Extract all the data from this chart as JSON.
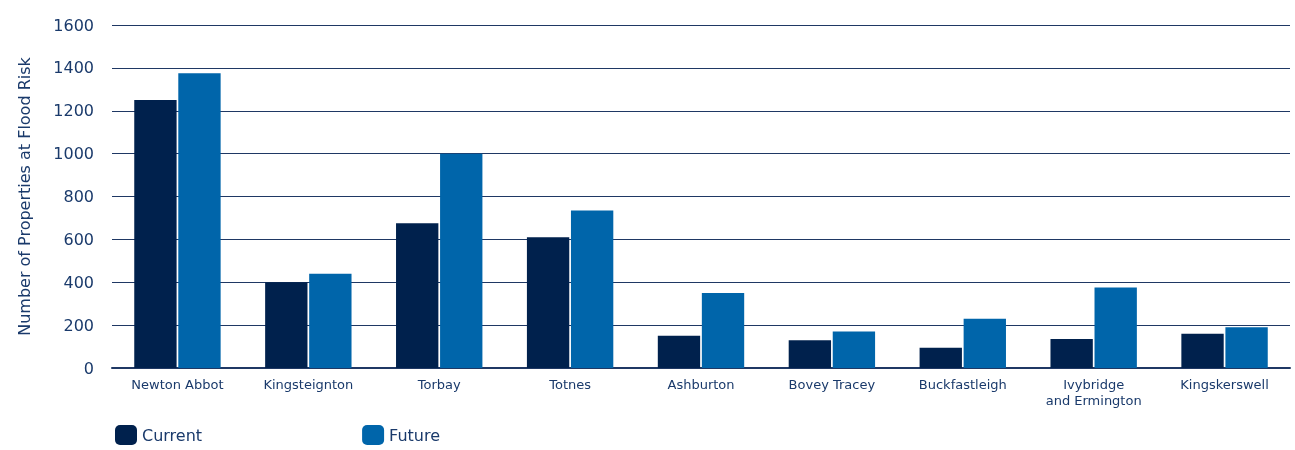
{
  "chart_data": {
    "type": "bar",
    "ylabel": "Number of Properties at Flood Risk",
    "categories": [
      "Newton Abbot",
      "Kingsteignton",
      "Torbay",
      "Totnes",
      "Ashburton",
      "Bovey Tracey",
      "Buckfastleigh",
      "Ivybridge\nand Ermington",
      "Kingskerswell"
    ],
    "series": [
      {
        "name": "Current",
        "color": "#00214d",
        "values": [
          1250,
          400,
          675,
          610,
          150,
          130,
          95,
          135,
          160
        ]
      },
      {
        "name": "Future",
        "color": "#0065aa",
        "values": [
          1375,
          440,
          1000,
          735,
          350,
          170,
          230,
          375,
          190
        ]
      }
    ],
    "ylim": [
      0,
      1600
    ],
    "yticks": [
      0,
      200,
      400,
      600,
      800,
      1000,
      1200,
      1400,
      1600
    ],
    "grid": "y",
    "legend": "bottom left"
  }
}
